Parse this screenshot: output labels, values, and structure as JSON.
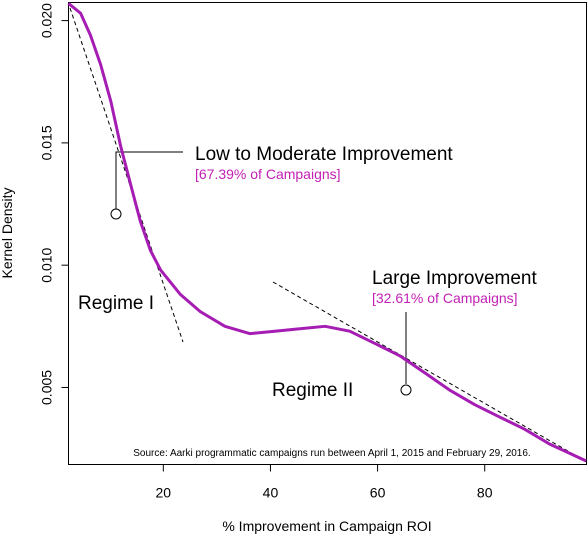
{
  "chart_data": {
    "type": "line",
    "x_label": "% Improvement in Campaign ROI",
    "y_label": "Kernel Density",
    "color": "#a51db3",
    "x": [
      2.3,
      4.56,
      6.4,
      8.3,
      10.2,
      12.0,
      13.9,
      15.7,
      17.6,
      19.5,
      23.2,
      26.9,
      31.5,
      36.2,
      40.8,
      45.5,
      50.2,
      54.8,
      59.5,
      64.1,
      68.8,
      73.4,
      78.1,
      82.7,
      87.4,
      92.0,
      98.9
    ],
    "values": [
      0.0207,
      0.0203,
      0.0194,
      0.0182,
      0.0167,
      0.0149,
      0.0133,
      0.0118,
      0.0106,
      0.0098,
      0.0088,
      0.0081,
      0.0075,
      0.0072,
      0.0073,
      0.0074,
      0.0075,
      0.0073,
      0.0068,
      0.0063,
      0.0056,
      0.0049,
      0.0043,
      0.0038,
      0.0033,
      0.0027,
      0.002
    ],
    "xlim": [
      2.3,
      99
    ],
    "ylim": [
      0.00185,
      0.02074
    ],
    "xticks": [
      20,
      40,
      60,
      80
    ],
    "yticks": [
      0.005,
      {
        "value": 0.01,
        "label": "0.010"
      },
      0.015,
      {
        "value": 0.02,
        "label": "0.020"
      }
    ],
    "annotations": [
      "Low to Moderate Improvement",
      "[67.39% of Campaigns]",
      "Large Improvement",
      "[32.61% of Campaigns]",
      "Regime I",
      "Regime II",
      "Source: Aarki programmatic campaigns run between April 1, 2015 and February 29, 2016."
    ]
  }
}
